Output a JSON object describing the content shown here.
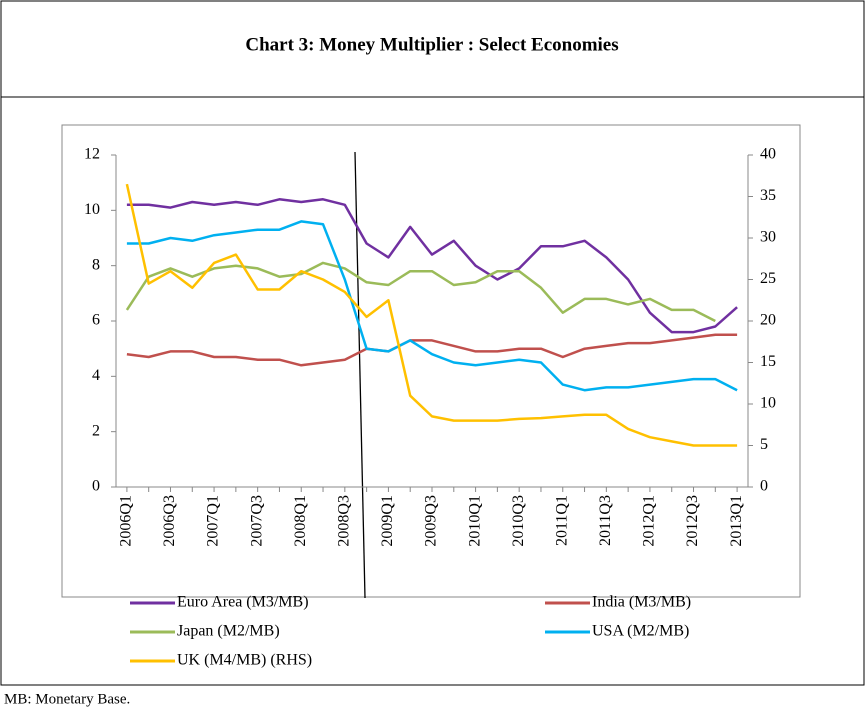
{
  "chart_data": {
    "type": "line",
    "title": "Chart 3: Money Multiplier : Select Economies",
    "categories": [
      "2006Q1",
      null,
      "2006Q3",
      null,
      "2007Q1",
      null,
      "2007Q3",
      null,
      "2008Q1",
      null,
      "2008Q3",
      null,
      "2009Q1",
      null,
      "2009Q3",
      null,
      "2010Q1",
      null,
      "2010Q3",
      null,
      "2011Q1",
      null,
      "2011Q3",
      null,
      "2012Q1",
      null,
      "2012Q3",
      null,
      "2013Q1"
    ],
    "series": [
      {
        "name": "Euro Area (M3/MB)",
        "color": "#7030a0",
        "values": [
          10.2,
          10.2,
          10.1,
          10.3,
          10.2,
          10.3,
          10.2,
          10.4,
          10.3,
          10.4,
          10.2,
          8.8,
          8.3,
          9.4,
          8.4,
          8.9,
          8.0,
          7.5,
          7.9,
          8.7,
          8.7,
          8.9,
          8.3,
          7.5,
          6.3,
          5.6,
          5.6,
          5.8,
          6.5
        ]
      },
      {
        "name": "India (M3/MB)",
        "color": "#c0504d",
        "values": [
          4.8,
          4.7,
          4.9,
          4.9,
          4.7,
          4.7,
          4.6,
          4.6,
          4.4,
          4.5,
          4.6,
          5.0,
          4.9,
          5.3,
          5.3,
          5.1,
          4.9,
          4.9,
          5.0,
          5.0,
          4.7,
          5.0,
          5.1,
          5.2,
          5.2,
          5.3,
          5.4,
          5.5,
          5.5
        ]
      },
      {
        "name": "Japan (M2/MB)",
        "color": "#9bbb59",
        "values": [
          6.4,
          7.6,
          7.9,
          7.6,
          7.9,
          8.0,
          7.9,
          7.6,
          7.7,
          8.1,
          7.9,
          7.4,
          7.3,
          7.8,
          7.8,
          7.3,
          7.4,
          7.8,
          7.8,
          7.2,
          6.3,
          6.8,
          6.8,
          6.6,
          6.8,
          6.4,
          6.4,
          6.0,
          null
        ]
      },
      {
        "name": "USA (M2/MB)",
        "color": "#00b0f0",
        "values": [
          8.8,
          8.8,
          9.0,
          8.9,
          9.1,
          9.2,
          9.3,
          9.3,
          9.6,
          9.5,
          7.5,
          5.0,
          4.9,
          5.3,
          4.8,
          4.5,
          4.4,
          4.5,
          4.6,
          4.5,
          3.7,
          3.5,
          3.6,
          3.6,
          3.7,
          3.8,
          3.9,
          3.9,
          3.5
        ]
      },
      {
        "name": "UK (M4/MB) (RHS)",
        "color": "#ffc000",
        "axis": "y2",
        "values": [
          36.5,
          24.5,
          26,
          24,
          27,
          28,
          23.8,
          23.8,
          26,
          25,
          23.5,
          20.5,
          22.5,
          11,
          8.5,
          8,
          8,
          8,
          8.2,
          8.3,
          8.5,
          8.7,
          8.7,
          7,
          6,
          5.5,
          5,
          5,
          5
        ]
      }
    ],
    "ylim": [
      0,
      12
    ],
    "yticks": [
      0,
      2,
      4,
      6,
      8,
      10,
      12
    ],
    "y2lim": [
      0,
      40
    ],
    "y2ticks": [
      0,
      5,
      10,
      15,
      20,
      25,
      30,
      35,
      40
    ],
    "grid": false,
    "legend": "bottom"
  },
  "footnote": "MB: Monetary Base."
}
